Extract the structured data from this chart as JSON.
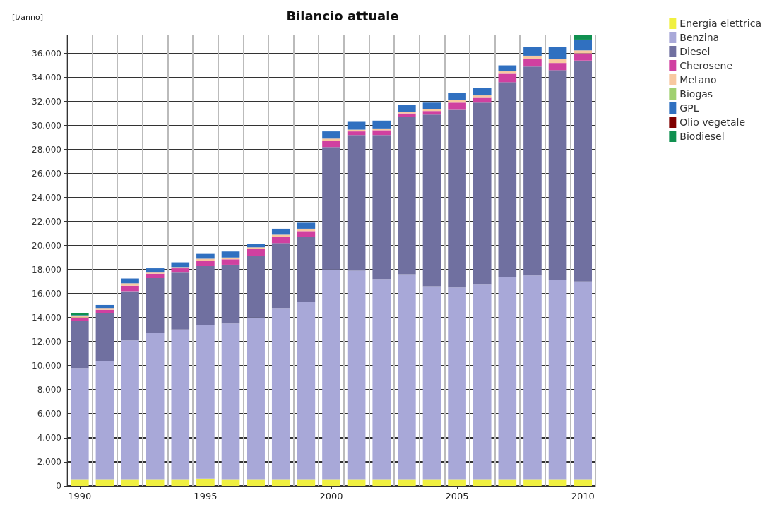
{
  "chart_data": {
    "type": "bar",
    "title": "Bilancio attuale",
    "ylabel": "[t/anno]",
    "stacked": true,
    "grid": true,
    "legend": "right",
    "categories": [
      "1990",
      null,
      null,
      null,
      null,
      "1995",
      null,
      null,
      null,
      null,
      "2000",
      null,
      null,
      null,
      null,
      "2005",
      null,
      null,
      null,
      null,
      "2010"
    ],
    "ylim": [
      0,
      37500
    ],
    "yticks": [
      0,
      {
        "value": 2000,
        "label": "2.000"
      },
      {
        "value": 4000,
        "label": "4.000"
      },
      {
        "value": 6000,
        "label": "6.000"
      },
      {
        "value": 8000,
        "label": "8.000"
      },
      {
        "value": 10000,
        "label": "10.000"
      },
      {
        "value": 12000,
        "label": "12.000"
      },
      {
        "value": 14000,
        "label": "14.000"
      },
      {
        "value": 16000,
        "label": "16.000"
      },
      {
        "value": 18000,
        "label": "18.000"
      },
      {
        "value": 20000,
        "label": "20.000"
      },
      {
        "value": 22000,
        "label": "22.000"
      },
      {
        "value": 24000,
        "label": "24.000"
      },
      {
        "value": 26000,
        "label": "26.000"
      },
      {
        "value": 28000,
        "label": "28.000"
      },
      {
        "value": 30000,
        "label": "30.000"
      },
      {
        "value": 32000,
        "label": "32.000"
      },
      {
        "value": 34000,
        "label": "34.000"
      },
      {
        "value": 36000,
        "label": "36.000"
      }
    ],
    "series": [
      {
        "name": "Energia elettrica",
        "color": "#f0f040",
        "values": [
          500,
          500,
          500,
          500,
          500,
          600,
          500,
          500,
          500,
          500,
          500,
          500,
          500,
          500,
          500,
          500,
          500,
          500,
          500,
          500,
          500
        ]
      },
      {
        "name": "Benzina",
        "color": "#a8a8d8",
        "values": [
          9300,
          9900,
          11600,
          12200,
          12500,
          12800,
          13000,
          13500,
          14300,
          14800,
          17500,
          17400,
          16700,
          17100,
          16100,
          16000,
          16300,
          16900,
          17000,
          16600,
          16500
        ]
      },
      {
        "name": "Diesel",
        "color": "#7070a0",
        "values": [
          3900,
          4000,
          4100,
          4600,
          4800,
          4900,
          4900,
          5100,
          5400,
          5400,
          10200,
          11300,
          12000,
          13100,
          14300,
          14800,
          15100,
          16200,
          17400,
          17500,
          18400
        ]
      },
      {
        "name": "Cherosene",
        "color": "#d040a0",
        "values": [
          300,
          250,
          450,
          350,
          300,
          400,
          450,
          600,
          500,
          500,
          500,
          300,
          400,
          300,
          300,
          600,
          400,
          700,
          600,
          600,
          600
        ]
      },
      {
        "name": "Metano",
        "color": "#f8c8a0",
        "values": [
          150,
          150,
          200,
          150,
          100,
          200,
          150,
          150,
          200,
          200,
          200,
          150,
          150,
          150,
          150,
          200,
          200,
          200,
          300,
          300,
          250
        ]
      },
      {
        "name": "Biogas",
        "color": "#a0d070",
        "values": [
          0,
          0,
          0,
          0,
          0,
          0,
          0,
          0,
          0,
          0,
          0,
          0,
          0,
          0,
          0,
          0,
          0,
          0,
          0,
          0,
          0
        ]
      },
      {
        "name": "GPL",
        "color": "#3070c0",
        "values": [
          50,
          250,
          400,
          300,
          400,
          400,
          500,
          300,
          500,
          500,
          600,
          650,
          650,
          550,
          550,
          600,
          600,
          500,
          700,
          1000,
          900
        ]
      },
      {
        "name": "Olio vegetale",
        "color": "#800000",
        "values": [
          0,
          0,
          0,
          0,
          0,
          0,
          0,
          0,
          0,
          0,
          0,
          0,
          0,
          0,
          0,
          0,
          0,
          0,
          0,
          0,
          0
        ]
      },
      {
        "name": "Biodiesel",
        "color": "#109050",
        "values": [
          200,
          0,
          0,
          0,
          0,
          0,
          0,
          0,
          0,
          0,
          0,
          0,
          0,
          0,
          0,
          0,
          0,
          0,
          0,
          0,
          350
        ]
      }
    ]
  }
}
